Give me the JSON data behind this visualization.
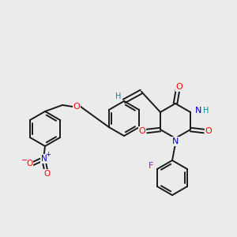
{
  "background_color": "#ebebeb",
  "bond_color": "#1a1a1a",
  "atom_colors": {
    "O": "#ff0000",
    "N": "#0000cc",
    "H": "#008b8b",
    "F": "#cc00cc",
    "NO2_N": "#0000cc",
    "NO2_O": "#ff0000"
  },
  "figsize": [
    3.0,
    3.0
  ],
  "dpi": 100,
  "bond_lw": 1.4,
  "ring_r": 20,
  "font_size": 7.5
}
